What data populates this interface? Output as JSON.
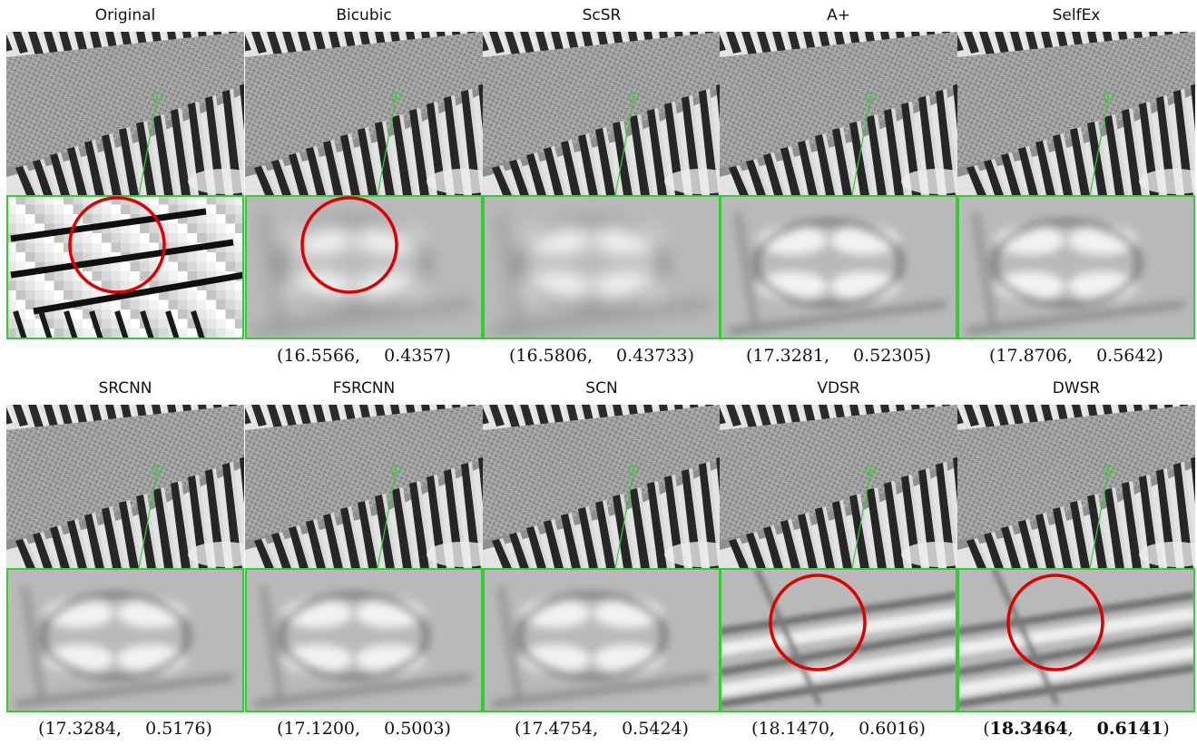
{
  "figure": {
    "panels": [
      {
        "title": "Original",
        "psnr": "",
        "ssim": "",
        "style": "original",
        "circle": true
      },
      {
        "title": "Bicubic",
        "psnr": "16.5566",
        "ssim": "0.4357",
        "style": "blur",
        "circle": true
      },
      {
        "title": "ScSR",
        "psnr": "16.5806",
        "ssim": "0.43733",
        "style": "blur",
        "circle": false
      },
      {
        "title": "A+",
        "psnr": "17.3281",
        "ssim": "0.52305",
        "style": "mid",
        "circle": false
      },
      {
        "title": "SelfEx",
        "psnr": "17.8706",
        "ssim": "0.5642",
        "style": "mid",
        "circle": false
      },
      {
        "title": "SRCNN",
        "psnr": "17.3284",
        "ssim": "0.5176",
        "style": "mid",
        "circle": false
      },
      {
        "title": "FSRCNN",
        "psnr": "17.1200",
        "ssim": "0.5003",
        "style": "mid",
        "circle": false
      },
      {
        "title": "SCN",
        "psnr": "17.4754",
        "ssim": "0.5424",
        "style": "mid",
        "circle": false
      },
      {
        "title": "VDSR",
        "psnr": "18.1470",
        "ssim": "0.6016",
        "style": "sharp",
        "circle": true
      },
      {
        "title": "DWSR",
        "psnr": "18.3464",
        "ssim": "0.6141",
        "style": "sharp",
        "circle": true,
        "best": true
      }
    ],
    "colors": {
      "zoom_border": "#33cc33",
      "circle": "#dd0000",
      "building_bg": "#e3e3e3"
    }
  }
}
